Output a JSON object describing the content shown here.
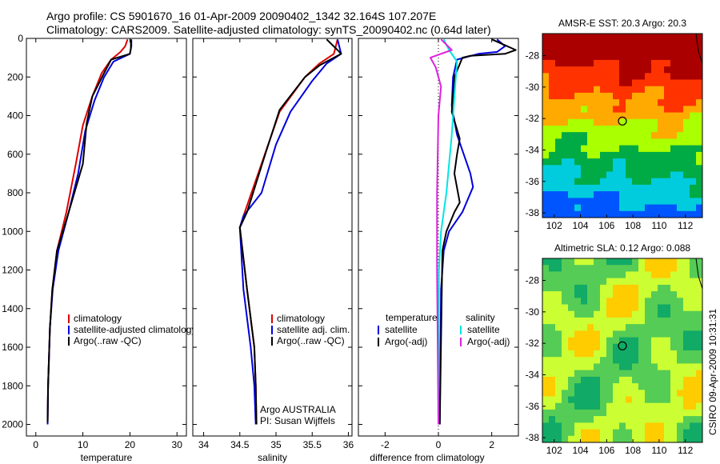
{
  "titles": {
    "line1": "Argo profile: CS 5901670_16 01-Apr-2009 20090402_1342 32.164S 107.207E",
    "line2": "Climatology: CARS2009. Satellite-adjusted climatology: synTS_20090402.nc (0.64d later)"
  },
  "footer_stamp": "CSIRO 09-Apr-2009 10:31:31",
  "colors": {
    "red": "#dd0000",
    "blue": "#0000dd",
    "black": "#000000",
    "cyan": "#00e5e5",
    "magenta": "#dd22dd"
  },
  "chart_data": [
    {
      "type": "line",
      "title": "",
      "xlabel": "temperature",
      "ylabel": "",
      "xlim": [
        -2,
        32
      ],
      "ylim": [
        2060,
        0
      ],
      "xticks": [
        "0",
        "10",
        "20",
        "30"
      ],
      "yticks": [
        "0",
        "200",
        "400",
        "600",
        "800",
        "1000",
        "1200",
        "1400",
        "1600",
        "1800",
        "2000"
      ],
      "legend": {
        "placement": "bottom-right",
        "entries": [
          "climatology",
          "satellite-adjusted climatology",
          "Argo(..raw -QC)"
        ]
      },
      "series": [
        {
          "name": "climatology",
          "color": "red",
          "points": [
            [
              19.5,
              5
            ],
            [
              19,
              40
            ],
            [
              18,
              70
            ],
            [
              16,
              110
            ],
            [
              14,
              180
            ],
            [
              12,
              300
            ],
            [
              10,
              450
            ],
            [
              8.5,
              650
            ],
            [
              6.5,
              900
            ],
            [
              4.5,
              1100
            ],
            [
              3.5,
              1300
            ],
            [
              3,
              1500
            ],
            [
              2.6,
              1800
            ],
            [
              2.5,
              2000
            ]
          ]
        },
        {
          "name": "satellite-adjusted climatology",
          "color": "blue",
          "points": [
            [
              20.3,
              5
            ],
            [
              20.3,
              40
            ],
            [
              20,
              80
            ],
            [
              16.5,
              120
            ],
            [
              14.5,
              200
            ],
            [
              12.5,
              320
            ],
            [
              10.5,
              480
            ],
            [
              9,
              700
            ],
            [
              7,
              900
            ],
            [
              4.8,
              1100
            ],
            [
              3.6,
              1300
            ],
            [
              3,
              1500
            ],
            [
              2.6,
              1800
            ],
            [
              2.5,
              2000
            ]
          ]
        },
        {
          "name": "Argo(..raw -QC)",
          "color": "black",
          "points": [
            [
              20.2,
              5
            ],
            [
              20.2,
              50
            ],
            [
              20,
              80
            ],
            [
              16,
              110
            ],
            [
              14.5,
              180
            ],
            [
              12,
              300
            ],
            [
              10.8,
              440
            ],
            [
              10,
              650
            ],
            [
              7,
              900
            ],
            [
              4.5,
              1100
            ],
            [
              3.5,
              1300
            ],
            [
              3,
              1500
            ],
            [
              2.6,
              1800
            ],
            [
              2.5,
              1990
            ]
          ]
        }
      ]
    },
    {
      "type": "line",
      "title": "",
      "xlabel": "salinity",
      "ylabel": "",
      "xlim": [
        33.85,
        36.05
      ],
      "ylim": [
        2060,
        0
      ],
      "xticks": [
        "34",
        "34.5",
        "35",
        "35.5",
        "36"
      ],
      "yticks": [],
      "legend": {
        "placement": "bottom-right",
        "entries": [
          "climatology",
          "satellite adj. clim.",
          "Argo(..raw -QC)"
        ]
      },
      "annotations": [
        "Argo AUSTRALIA",
        "PI: Susan Wijffels"
      ],
      "series": [
        {
          "name": "climatology",
          "color": "red",
          "points": [
            [
              35.85,
              5
            ],
            [
              35.8,
              80
            ],
            [
              35.6,
              130
            ],
            [
              35.4,
              200
            ],
            [
              35.05,
              380
            ],
            [
              34.8,
              650
            ],
            [
              34.55,
              920
            ],
            [
              34.5,
              980
            ],
            [
              34.6,
              1300
            ],
            [
              34.7,
              1600
            ],
            [
              34.72,
              1800
            ],
            [
              34.73,
              2000
            ]
          ]
        },
        {
          "name": "satellite adj. clim.",
          "color": "blue",
          "points": [
            [
              35.85,
              5
            ],
            [
              35.9,
              80
            ],
            [
              35.7,
              130
            ],
            [
              35.5,
              220
            ],
            [
              35.2,
              380
            ],
            [
              35.0,
              550
            ],
            [
              34.8,
              800
            ],
            [
              34.55,
              920
            ],
            [
              34.5,
              980
            ],
            [
              34.55,
              1300
            ],
            [
              34.65,
              1600
            ],
            [
              34.7,
              1800
            ],
            [
              34.72,
              2000
            ]
          ]
        },
        {
          "name": "Argo(..raw -QC)",
          "color": "black",
          "points": [
            [
              35.7,
              5
            ],
            [
              35.85,
              60
            ],
            [
              35.9,
              80
            ],
            [
              35.6,
              140
            ],
            [
              35.4,
              200
            ],
            [
              35.05,
              370
            ],
            [
              34.85,
              600
            ],
            [
              34.6,
              900
            ],
            [
              34.5,
              980
            ],
            [
              34.6,
              1300
            ],
            [
              34.7,
              1600
            ],
            [
              34.72,
              1800
            ],
            [
              34.73,
              2000
            ]
          ]
        }
      ]
    },
    {
      "type": "line",
      "title": "",
      "xlabel": "difference from climatology",
      "ylabel": "",
      "xlim": [
        -3,
        3
      ],
      "ylim": [
        2060,
        0
      ],
      "xticks": [
        "-2",
        "0",
        "2"
      ],
      "yticks": [],
      "legend": {
        "placement": "bottom",
        "groups": [
          "temperature",
          "salinity"
        ],
        "entries": [
          "satellite",
          "Argo(-adj)",
          "satellite",
          "Argo(-adj)"
        ]
      },
      "series": [
        {
          "name": "temperature satellite",
          "color": "blue",
          "points": [
            [
              2.2,
              5
            ],
            [
              2.5,
              40
            ],
            [
              2.2,
              70
            ],
            [
              1.5,
              80
            ],
            [
              0.7,
              110
            ],
            [
              0.55,
              200
            ],
            [
              0.5,
              350
            ],
            [
              0.7,
              500
            ],
            [
              1.2,
              700
            ],
            [
              1.3,
              770
            ],
            [
              0.9,
              900
            ],
            [
              0.4,
              1000
            ],
            [
              0.2,
              1100
            ],
            [
              0.1,
              1300
            ],
            [
              0.05,
              2000
            ]
          ]
        },
        {
          "name": "temperature Argo(-adj)",
          "color": "black",
          "points": [
            [
              2.0,
              5
            ],
            [
              2.9,
              60
            ],
            [
              2.5,
              80
            ],
            [
              1.2,
              90
            ],
            [
              0.9,
              100
            ],
            [
              0.6,
              200
            ],
            [
              0.5,
              380
            ],
            [
              0.8,
              520
            ],
            [
              0.7,
              600
            ],
            [
              0.6,
              700
            ],
            [
              0.8,
              850
            ],
            [
              0.6,
              900
            ],
            [
              0.3,
              1000
            ],
            [
              0.15,
              1100
            ],
            [
              0.05,
              2000
            ]
          ]
        },
        {
          "name": "salinity satellite",
          "color": "cyan",
          "points": [
            [
              0.2,
              5
            ],
            [
              0.4,
              60
            ],
            [
              0.7,
              120
            ],
            [
              0.6,
              300
            ],
            [
              0.5,
              500
            ],
            [
              0.3,
              800
            ],
            [
              0.1,
              1000
            ],
            [
              0.02,
              1200
            ],
            [
              0.0,
              2000
            ]
          ]
        },
        {
          "name": "salinity Argo(-adj)",
          "color": "magenta",
          "points": [
            [
              0.1,
              5
            ],
            [
              0.5,
              60
            ],
            [
              -0.3,
              100
            ],
            [
              -0.1,
              150
            ],
            [
              0.1,
              250
            ],
            [
              0.0,
              400
            ],
            [
              -0.05,
              800
            ],
            [
              -0.05,
              1200
            ],
            [
              0.0,
              2000
            ]
          ]
        }
      ]
    }
  ],
  "maps": [
    {
      "title": "AMSR-E SST: 20.3 Argo: 20.3",
      "xticks": [
        "102",
        "104",
        "106",
        "108",
        "110",
        "112"
      ],
      "yticks": [
        "-28",
        "-30",
        "-32",
        "-34",
        "-36",
        "-38"
      ],
      "marker": {
        "lon": 107.2,
        "lat": -32.16
      },
      "bands": [
        "#aa0000",
        "#ff3300",
        "#ffaa00",
        "#aaff00",
        "#00aa44",
        "#00ccdd",
        "#0055ff"
      ]
    },
    {
      "title": "Altimetric SLA: 0.12 Argo: 0.088",
      "xticks": [
        "102",
        "104",
        "106",
        "108",
        "110",
        "112"
      ],
      "yticks": [
        "-28",
        "-30",
        "-32",
        "-34",
        "-36",
        "-38"
      ],
      "marker": {
        "lon": 107.2,
        "lat": -32.16
      },
      "bands": [
        "#ffcc00",
        "#ccff33",
        "#55cc55",
        "#11aa66"
      ]
    }
  ]
}
